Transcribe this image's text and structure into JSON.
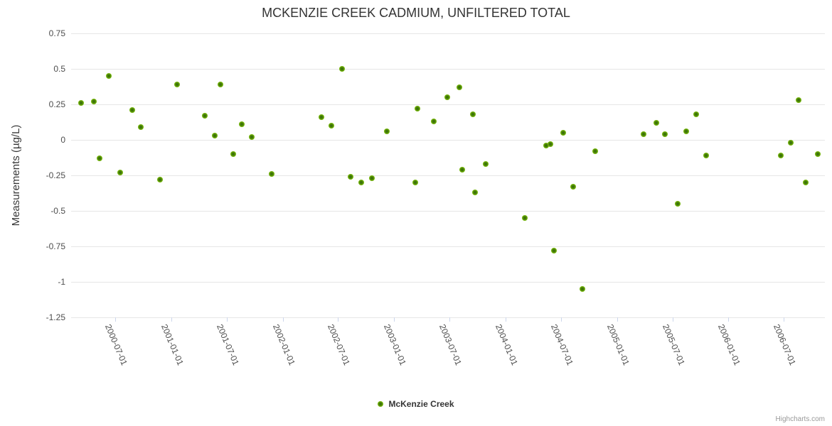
{
  "chart_data": {
    "type": "scatter",
    "title": "MCKENZIE CREEK CADMIUM, UNFILTERED TOTAL",
    "xlabel": "",
    "ylabel": "Measurements (µg/L)",
    "grid": true,
    "legend_position": "bottom-center",
    "x_axis": {
      "type": "datetime",
      "min": "2000-02-07",
      "max": "2006-11-13",
      "tick_labels": [
        "2000-07-01",
        "2001-01-01",
        "2001-07-01",
        "2002-01-01",
        "2002-07-01",
        "2003-01-01",
        "2003-07-01",
        "2004-01-01",
        "2004-07-01",
        "2005-01-01",
        "2005-07-01",
        "2006-01-01",
        "2006-07-01"
      ]
    },
    "y_axis": {
      "min": -1.25,
      "max": 0.75,
      "tick_interval": 0.25,
      "tick_labels": [
        "0.75",
        "0.5",
        "0.25",
        "0",
        "-0.25",
        "-0.5",
        "-0.75",
        "-1",
        "-1.25"
      ]
    },
    "series": [
      {
        "name": "McKenzie Creek",
        "marker": "circle",
        "points": [
          {
            "date": "2000-03-10",
            "value": 0.26
          },
          {
            "date": "2000-04-22",
            "value": 0.27
          },
          {
            "date": "2000-05-11",
            "value": -0.13
          },
          {
            "date": "2000-06-09",
            "value": 0.45
          },
          {
            "date": "2000-07-17",
            "value": -0.23
          },
          {
            "date": "2000-08-26",
            "value": 0.21
          },
          {
            "date": "2000-09-22",
            "value": 0.09
          },
          {
            "date": "2000-11-25",
            "value": -0.28
          },
          {
            "date": "2001-01-19",
            "value": 0.39
          },
          {
            "date": "2001-04-21",
            "value": 0.17
          },
          {
            "date": "2001-05-22",
            "value": 0.03
          },
          {
            "date": "2001-06-10",
            "value": 0.39
          },
          {
            "date": "2001-07-22",
            "value": -0.1
          },
          {
            "date": "2001-08-19",
            "value": 0.11
          },
          {
            "date": "2001-09-21",
            "value": 0.02
          },
          {
            "date": "2001-11-26",
            "value": -0.24
          },
          {
            "date": "2002-05-08",
            "value": 0.16
          },
          {
            "date": "2002-06-09",
            "value": 0.1
          },
          {
            "date": "2002-07-15",
            "value": 0.5
          },
          {
            "date": "2002-08-12",
            "value": -0.26
          },
          {
            "date": "2002-09-15",
            "value": -0.3
          },
          {
            "date": "2002-10-21",
            "value": -0.27
          },
          {
            "date": "2002-12-09",
            "value": 0.06
          },
          {
            "date": "2003-03-11",
            "value": -0.3
          },
          {
            "date": "2003-03-18",
            "value": 0.22
          },
          {
            "date": "2003-05-11",
            "value": 0.13
          },
          {
            "date": "2003-06-25",
            "value": 0.3
          },
          {
            "date": "2003-08-03",
            "value": 0.37
          },
          {
            "date": "2003-08-13",
            "value": -0.21
          },
          {
            "date": "2003-09-16",
            "value": 0.18
          },
          {
            "date": "2003-09-22",
            "value": -0.37
          },
          {
            "date": "2003-10-29",
            "value": -0.17
          },
          {
            "date": "2004-03-05",
            "value": -0.55
          },
          {
            "date": "2004-05-14",
            "value": -0.04
          },
          {
            "date": "2004-05-27",
            "value": -0.03
          },
          {
            "date": "2004-06-09",
            "value": -0.78
          },
          {
            "date": "2004-07-07",
            "value": 0.05
          },
          {
            "date": "2004-08-10",
            "value": -0.33
          },
          {
            "date": "2004-09-08",
            "value": -1.05
          },
          {
            "date": "2004-10-20",
            "value": -0.08
          },
          {
            "date": "2005-03-29",
            "value": 0.04
          },
          {
            "date": "2005-05-09",
            "value": 0.12
          },
          {
            "date": "2005-06-07",
            "value": 0.04
          },
          {
            "date": "2005-07-19",
            "value": -0.45
          },
          {
            "date": "2005-08-16",
            "value": 0.06
          },
          {
            "date": "2005-09-16",
            "value": 0.18
          },
          {
            "date": "2005-10-20",
            "value": -0.11
          },
          {
            "date": "2006-06-22",
            "value": -0.11
          },
          {
            "date": "2006-07-23",
            "value": -0.02
          },
          {
            "date": "2006-08-18",
            "value": 0.28
          },
          {
            "date": "2006-09-10",
            "value": -0.3
          },
          {
            "date": "2006-10-20",
            "value": -0.1
          }
        ]
      }
    ]
  },
  "legend": {
    "items": [
      {
        "label": "McKenzie Creek"
      }
    ]
  },
  "credits": {
    "text": "Highcharts.com"
  },
  "colors": {
    "marker_outer": "#7fc20e",
    "marker_mid": "#619c0a",
    "marker_core": "#3c7408",
    "grid": "#e6e6e6",
    "axis_line": "#ccd6eb",
    "title_text": "#333333",
    "label_text": "#4d4d4d",
    "credit_text": "#999999"
  }
}
